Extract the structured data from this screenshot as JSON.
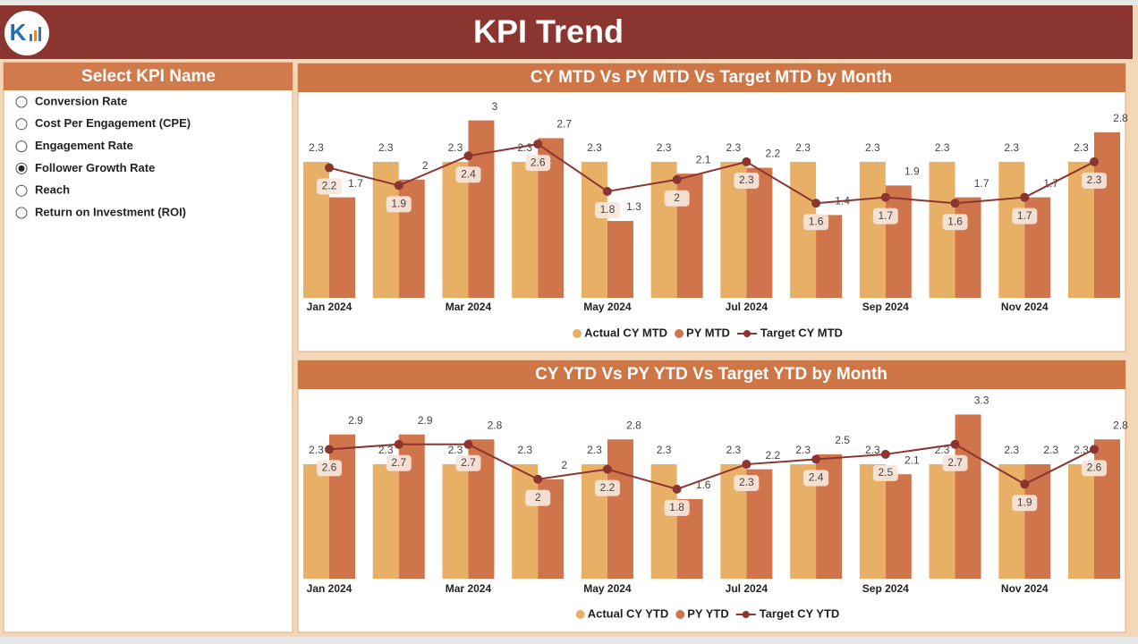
{
  "header": {
    "title": "KPI Trend"
  },
  "kpi_selector": {
    "title": "Select KPI Name",
    "options": [
      "Conversion Rate",
      "Cost Per Engagement (CPE)",
      "Engagement Rate",
      "Follower Growth Rate",
      "Reach",
      "Return on Investment (ROI)"
    ],
    "selected_index": 3
  },
  "chart_data": [
    {
      "type": "bar",
      "title": "CY MTD Vs PY MTD Vs Target MTD by Month",
      "categories": [
        "Jan 2024",
        null,
        "Mar 2024",
        null,
        "May 2024",
        null,
        "Jul 2024",
        null,
        "Sep 2024",
        null,
        "Nov 2024",
        null
      ],
      "series": [
        {
          "name": "Actual CY MTD",
          "color": "#e8b066",
          "values": [
            2.3,
            2.3,
            2.3,
            2.3,
            2.3,
            2.3,
            2.3,
            2.3,
            2.3,
            2.3,
            2.3,
            2.3
          ]
        },
        {
          "name": "PY MTD",
          "color": "#d0744b",
          "values": [
            1.7,
            2.0,
            3.0,
            2.7,
            1.3,
            2.1,
            2.2,
            1.4,
            1.9,
            1.7,
            1.7,
            2.8
          ]
        },
        {
          "name": "Target CY MTD",
          "color": "#8b3530",
          "type": "line",
          "values": [
            2.2,
            1.9,
            2.4,
            2.6,
            1.8,
            2.0,
            2.3,
            1.6,
            1.7,
            1.6,
            1.7,
            2.3
          ]
        }
      ]
    },
    {
      "type": "bar",
      "title": "CY YTD Vs PY YTD Vs Target YTD by Month",
      "categories": [
        "Jan 2024",
        null,
        "Mar 2024",
        null,
        "May 2024",
        null,
        "Jul 2024",
        null,
        "Sep 2024",
        null,
        "Nov 2024",
        null
      ],
      "series": [
        {
          "name": "Actual CY YTD",
          "color": "#e8b066",
          "values": [
            2.3,
            2.3,
            2.3,
            2.3,
            2.3,
            2.3,
            2.3,
            2.3,
            2.3,
            2.3,
            2.3,
            2.3
          ]
        },
        {
          "name": "PY YTD",
          "color": "#d0744b",
          "values": [
            2.9,
            2.9,
            2.8,
            2.0,
            2.8,
            1.6,
            2.2,
            2.5,
            2.1,
            3.3,
            2.3,
            2.8
          ]
        },
        {
          "name": "Target CY YTD",
          "color": "#8b3530",
          "type": "line",
          "values": [
            2.6,
            2.7,
            2.7,
            2.0,
            2.2,
            1.8,
            2.3,
            2.4,
            2.5,
            2.7,
            1.9,
            2.6
          ]
        }
      ]
    }
  ]
}
